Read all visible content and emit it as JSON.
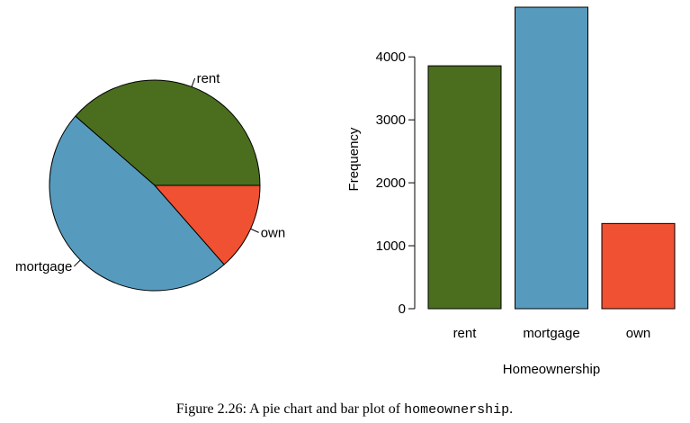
{
  "chart_data": [
    {
      "type": "pie",
      "categories": [
        "rent",
        "mortgage",
        "own"
      ],
      "values": [
        3858,
        4789,
        1353
      ],
      "colors": [
        "#4a6e1e",
        "#569bbd",
        "#f05133"
      ],
      "title": ""
    },
    {
      "type": "bar",
      "categories": [
        "rent",
        "mortgage",
        "own"
      ],
      "values": [
        3858,
        4789,
        1353
      ],
      "colors": [
        "#4a6e1e",
        "#569bbd",
        "#f05133"
      ],
      "title": "",
      "xlabel": "Homeownership",
      "ylabel": "Frequency",
      "yticks": [
        0,
        1000,
        2000,
        3000,
        4000
      ],
      "ylim": [
        0,
        4789
      ],
      "grid": false
    }
  ],
  "caption": {
    "prefix": "Figure 2.26: A pie chart and bar plot of ",
    "code": "homeownership",
    "suffix": "."
  }
}
